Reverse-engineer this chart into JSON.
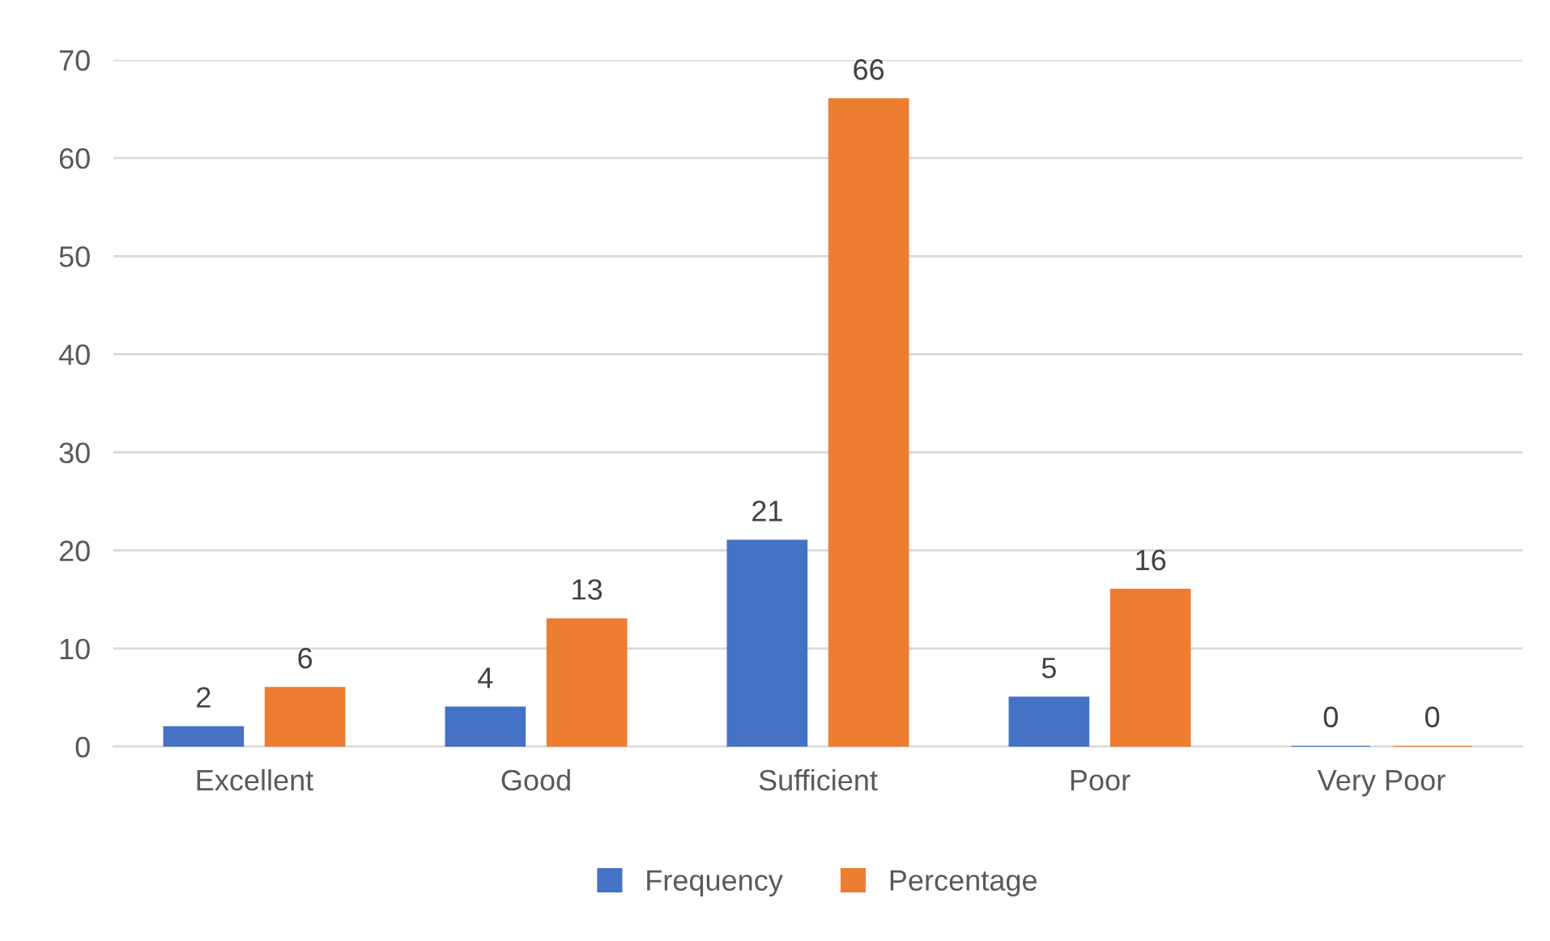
{
  "chart_data": {
    "type": "bar",
    "categories": [
      "Excellent",
      "Good",
      "Sufficient",
      "Poor",
      "Very Poor"
    ],
    "series": [
      {
        "name": "Frequency",
        "color": "#4472c4",
        "values": [
          2,
          4,
          21,
          5,
          0
        ]
      },
      {
        "name": "Percentage",
        "color": "#ed7d31",
        "values": [
          6,
          13,
          66,
          16,
          0
        ]
      }
    ],
    "ylim": [
      0,
      70
    ],
    "yticks": [
      0,
      10,
      20,
      30,
      40,
      50,
      60,
      70
    ],
    "grid": "y",
    "legend": "bottom",
    "data_labels": true
  }
}
